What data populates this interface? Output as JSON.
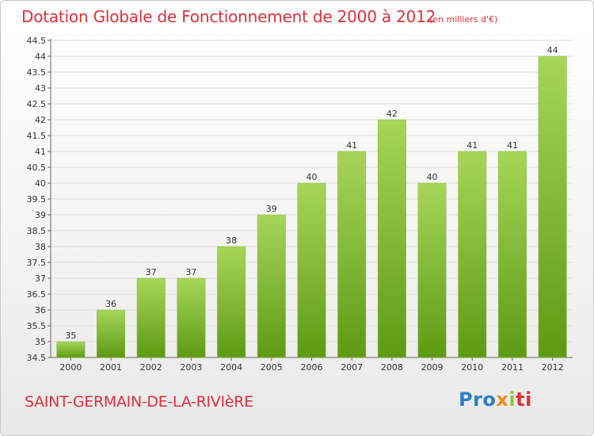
{
  "header": {
    "title": "Dotation Globale de Fonctionnement de 2000 à 2012",
    "subtitle": "(en milliers d'€)"
  },
  "footer": {
    "commune": "SAINT-GERMAIN-DE-LA-RIVIèRE",
    "logo_parts": [
      "Pro",
      "x",
      "i",
      "ti"
    ]
  },
  "colors": {
    "bar_light": "#a6d65a",
    "bar_dark": "#5e9a14",
    "title": "#e0303a"
  },
  "chart_data": {
    "type": "bar",
    "title": "Dotation Globale de Fonctionnement de 2000 à 2012",
    "subtitle": "(en milliers d'€)",
    "categories": [
      "2000",
      "2001",
      "2002",
      "2003",
      "2004",
      "2005",
      "2006",
      "2007",
      "2008",
      "2009",
      "2010",
      "2011",
      "2012"
    ],
    "values": [
      35,
      36,
      37,
      37,
      38,
      39,
      40,
      41,
      42,
      40,
      41,
      41,
      44
    ],
    "data_labels": [
      "35",
      "36",
      "37",
      "37",
      "38",
      "39",
      "40",
      "41",
      "42",
      "40",
      "41",
      "41",
      "44"
    ],
    "ylim": [
      34.5,
      44.5
    ],
    "yticks": [
      34.5,
      35,
      35.5,
      36,
      36.5,
      37,
      37.5,
      38,
      38.5,
      39,
      39.5,
      40,
      40.5,
      41,
      41.5,
      42,
      42.5,
      43,
      43.5,
      44,
      44.5
    ],
    "ytick_labels": [
      "34.5",
      "35",
      "35.5",
      "36",
      "36.5",
      "37",
      "37.5",
      "38",
      "38.5",
      "39",
      "39.5",
      "40",
      "40.5",
      "41",
      "41.5",
      "42",
      "42.5",
      "43",
      "43.5",
      "44",
      "44.5"
    ],
    "grid": true,
    "legend": "none"
  }
}
